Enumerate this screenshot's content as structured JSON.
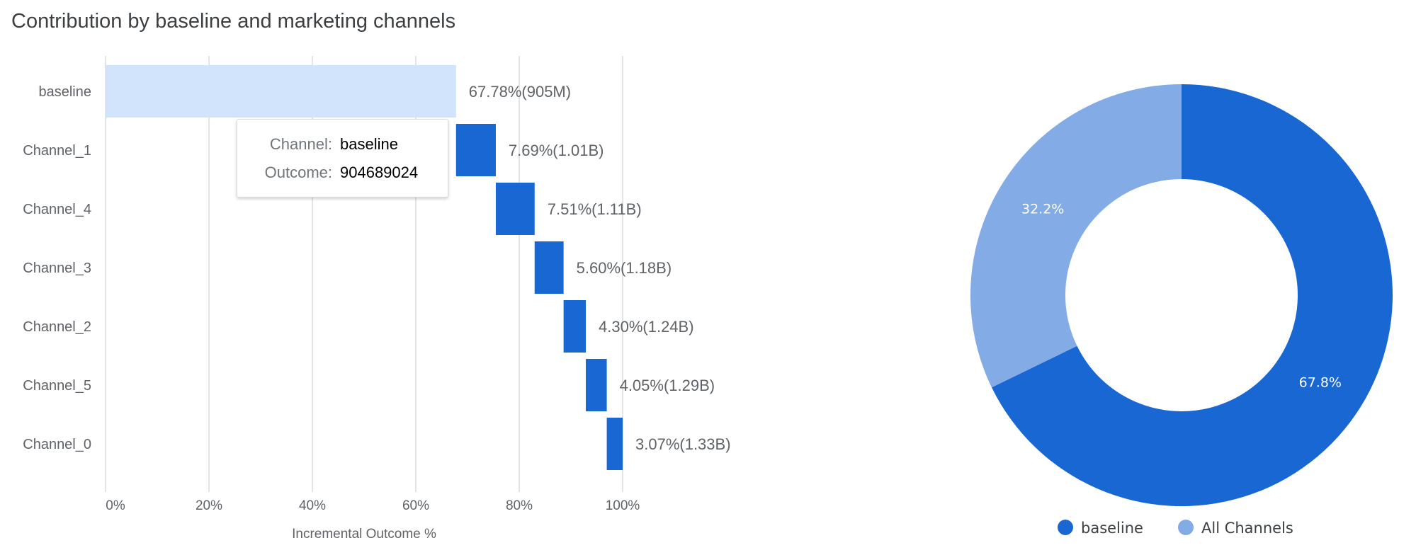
{
  "title": "Contribution by baseline and marketing channels",
  "colors": {
    "baseline_bar": "#d2e3fc",
    "channel_bar": "#1967d2",
    "all_channels": "#83abe6",
    "grid": "#dadce0",
    "text": "#5f6368"
  },
  "tooltip": {
    "channel_label": "Channel:",
    "channel_value": "baseline",
    "outcome_label": "Outcome:",
    "outcome_value": "904689024"
  },
  "chart_data": [
    {
      "type": "bar",
      "subtype": "waterfall",
      "orientation": "horizontal",
      "categories": [
        "baseline",
        "Channel_1",
        "Channel_4",
        "Channel_3",
        "Channel_2",
        "Channel_5",
        "Channel_0"
      ],
      "values": [
        67.78,
        7.69,
        7.51,
        5.6,
        4.3,
        4.05,
        3.07
      ],
      "data_labels": [
        "67.78%(905M)",
        "7.69%(1.01B)",
        "7.51%(1.11B)",
        "5.60%(1.18B)",
        "4.30%(1.24B)",
        "4.05%(1.29B)",
        "3.07%(1.33B)"
      ],
      "xlabel": "Incremental Outcome %",
      "ylabel": "",
      "xlim": [
        0,
        100
      ],
      "xticks": [
        "0%",
        "20%",
        "40%",
        "60%",
        "80%",
        "100%"
      ],
      "grid": true
    },
    {
      "type": "pie",
      "subtype": "donut",
      "labels": [
        "baseline",
        "All Channels"
      ],
      "values": [
        67.8,
        32.2
      ],
      "data_labels": [
        "67.8%",
        "32.2%"
      ],
      "legend": "bottom"
    }
  ]
}
